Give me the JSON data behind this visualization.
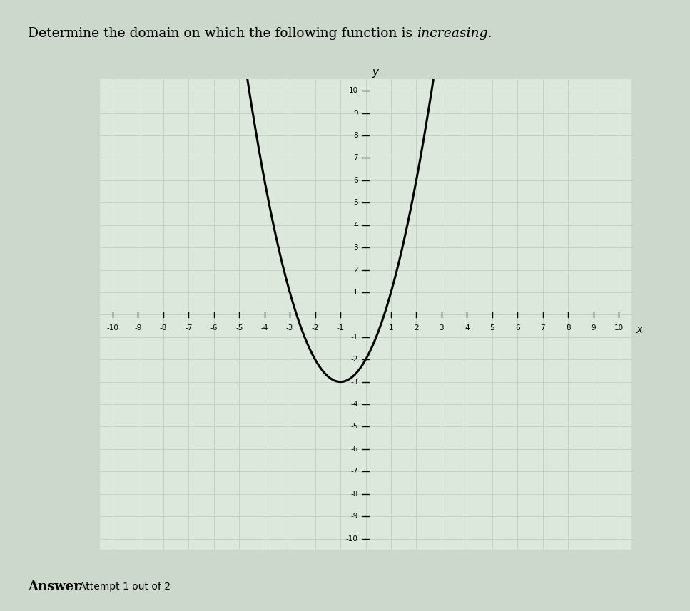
{
  "title_part1": "Determine the domain on which the following function is ",
  "title_part2": "increasing.",
  "subtitle_bold": "Answer",
  "subtitle_normal": "Attempt 1 out of 2",
  "xlim": [
    -10.5,
    10.5
  ],
  "ylim": [
    -10.5,
    10.5
  ],
  "xticks": [
    -10,
    -9,
    -8,
    -7,
    -6,
    -5,
    -4,
    -3,
    -2,
    -1,
    1,
    2,
    3,
    4,
    5,
    6,
    7,
    8,
    9,
    10
  ],
  "yticks": [
    -10,
    -9,
    -8,
    -7,
    -6,
    -5,
    -4,
    -3,
    -2,
    -1,
    1,
    2,
    3,
    4,
    5,
    6,
    7,
    8,
    9,
    10
  ],
  "curve_color": "#000000",
  "curve_linewidth": 2.2,
  "grid_color": "#bfcfbf",
  "grid_linewidth": 0.6,
  "axis_color": "#000000",
  "plot_bg": "#dde8dd",
  "fig_bg": "#cdd8cd",
  "a": 1,
  "b": 2,
  "c": -2,
  "x_start": -7.3,
  "x_end": 4.3,
  "xlabel": "x",
  "ylabel": "y",
  "tick_fontsize": 7.5,
  "label_fontsize": 11,
  "title_fontsize": 13.5,
  "answer_fontsize": 13,
  "attempt_fontsize": 10
}
